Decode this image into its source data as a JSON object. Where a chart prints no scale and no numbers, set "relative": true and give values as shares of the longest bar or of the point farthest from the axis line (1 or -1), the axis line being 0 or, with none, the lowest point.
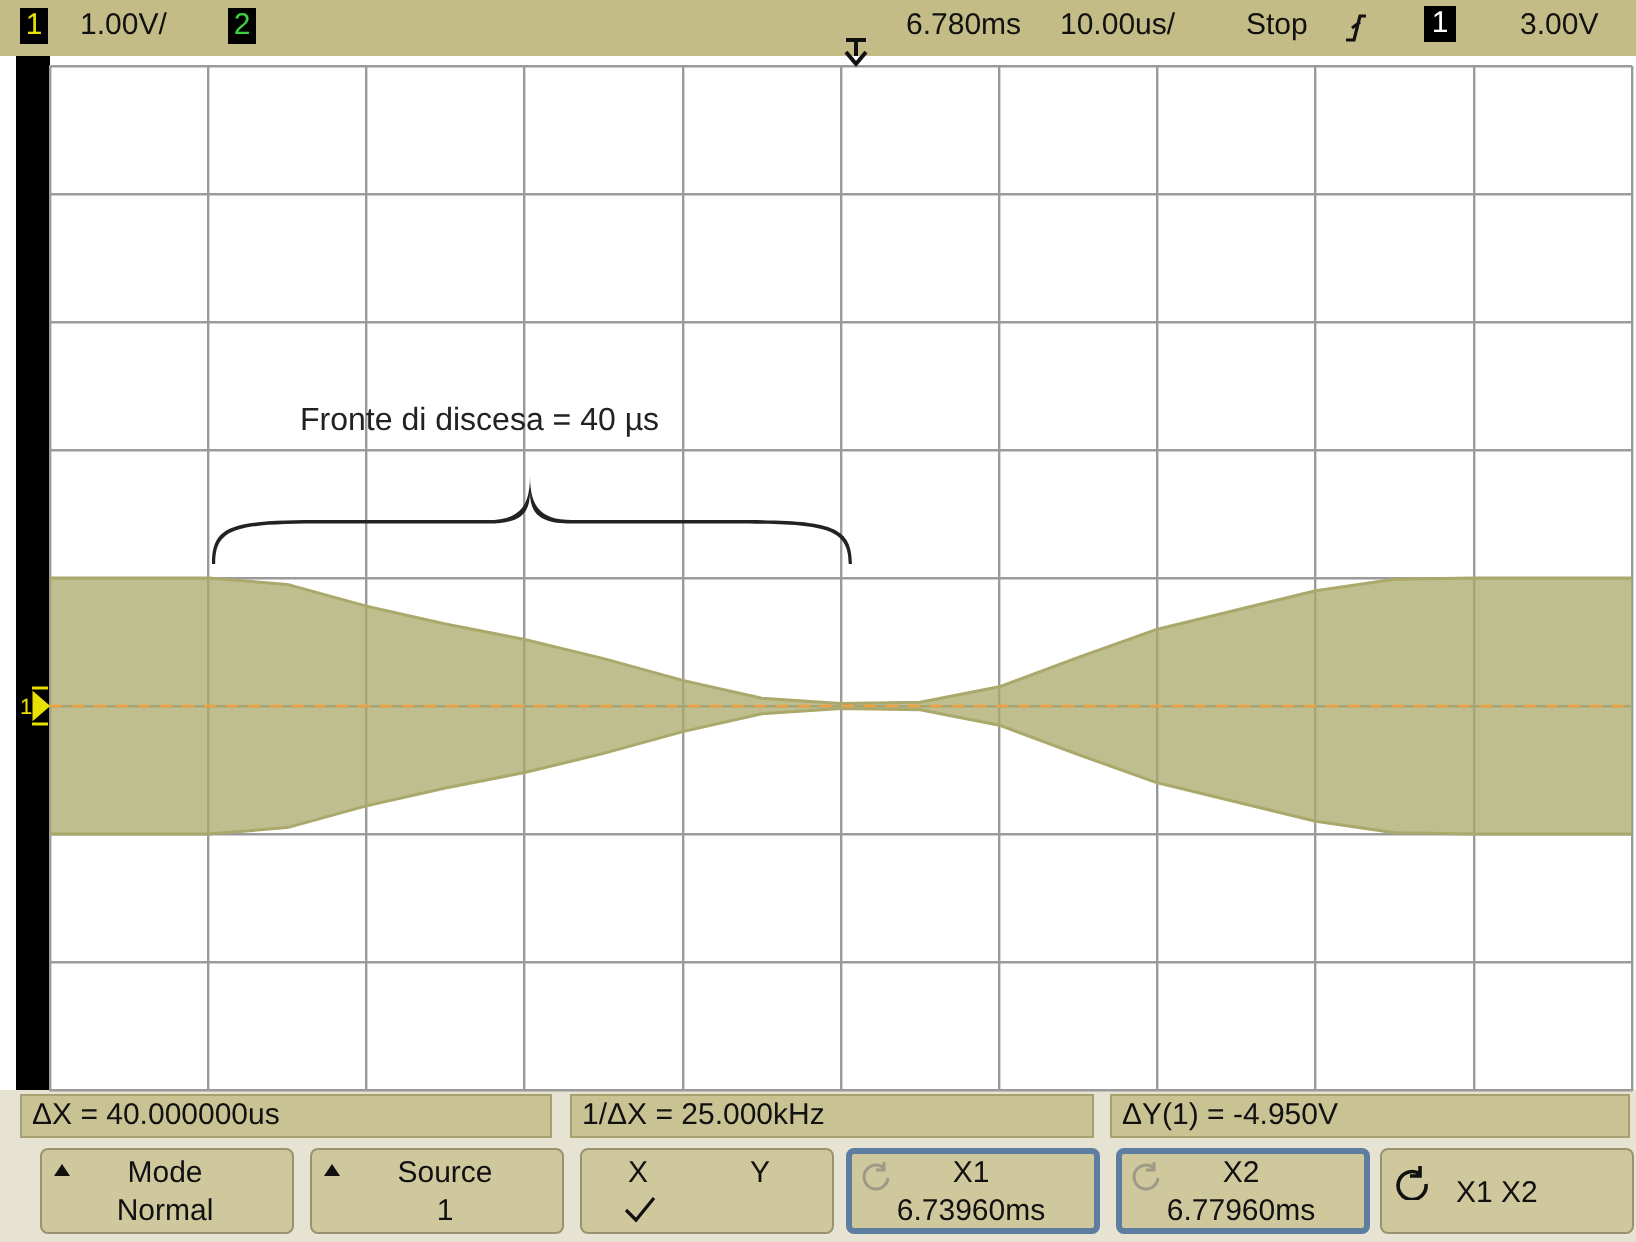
{
  "chart_data": {
    "type": "area",
    "categories": [
      null,
      null,
      null,
      null,
      null,
      null,
      null,
      null,
      null,
      null,
      null,
      null,
      null,
      null,
      null,
      null,
      null,
      null,
      null,
      null,
      null
    ],
    "relative": true,
    "series": [
      {
        "color": "#aaa86a",
        "values": [
          1,
          1,
          1,
          0.95,
          0.78,
          0.64,
          0.52,
          0.37,
          0.2,
          0.06,
          0.02,
          0.03,
          0.15,
          0.38,
          0.6,
          0.75,
          0.9,
          0.99,
          1,
          1,
          1
        ]
      },
      {
        "color": "#aaa86a",
        "values": [
          -1,
          -1,
          -1,
          -0.95,
          -0.78,
          -0.64,
          -0.52,
          -0.37,
          -0.2,
          -0.06,
          -0.02,
          -0.03,
          -0.15,
          -0.38,
          -0.6,
          -0.75,
          -0.9,
          -0.99,
          -1,
          -1,
          -1
        ]
      }
    ],
    "grid": true,
    "legend": false,
    "marker": "none",
    "ref_lines": [
      {
        "axis": "y",
        "value": 0,
        "color": "#f0a040",
        "line_style": "dashed"
      }
    ],
    "annotations": [
      "Fronte di discesa = 40 µs",
      "1",
      "1.00V/",
      "2",
      "6.780ms",
      "10.00us/",
      "Stop",
      "1",
      "3.00V",
      "ΔX = 40.000000us",
      "1/ΔX = 25.000kHz",
      "ΔY(1) = -4.950V",
      "Mode",
      "Normal",
      "Source",
      "1",
      "X",
      "Y",
      "X1",
      "6.73960ms",
      "X2",
      "6.77960ms",
      "X1 X2",
      "1"
    ]
  }
}
